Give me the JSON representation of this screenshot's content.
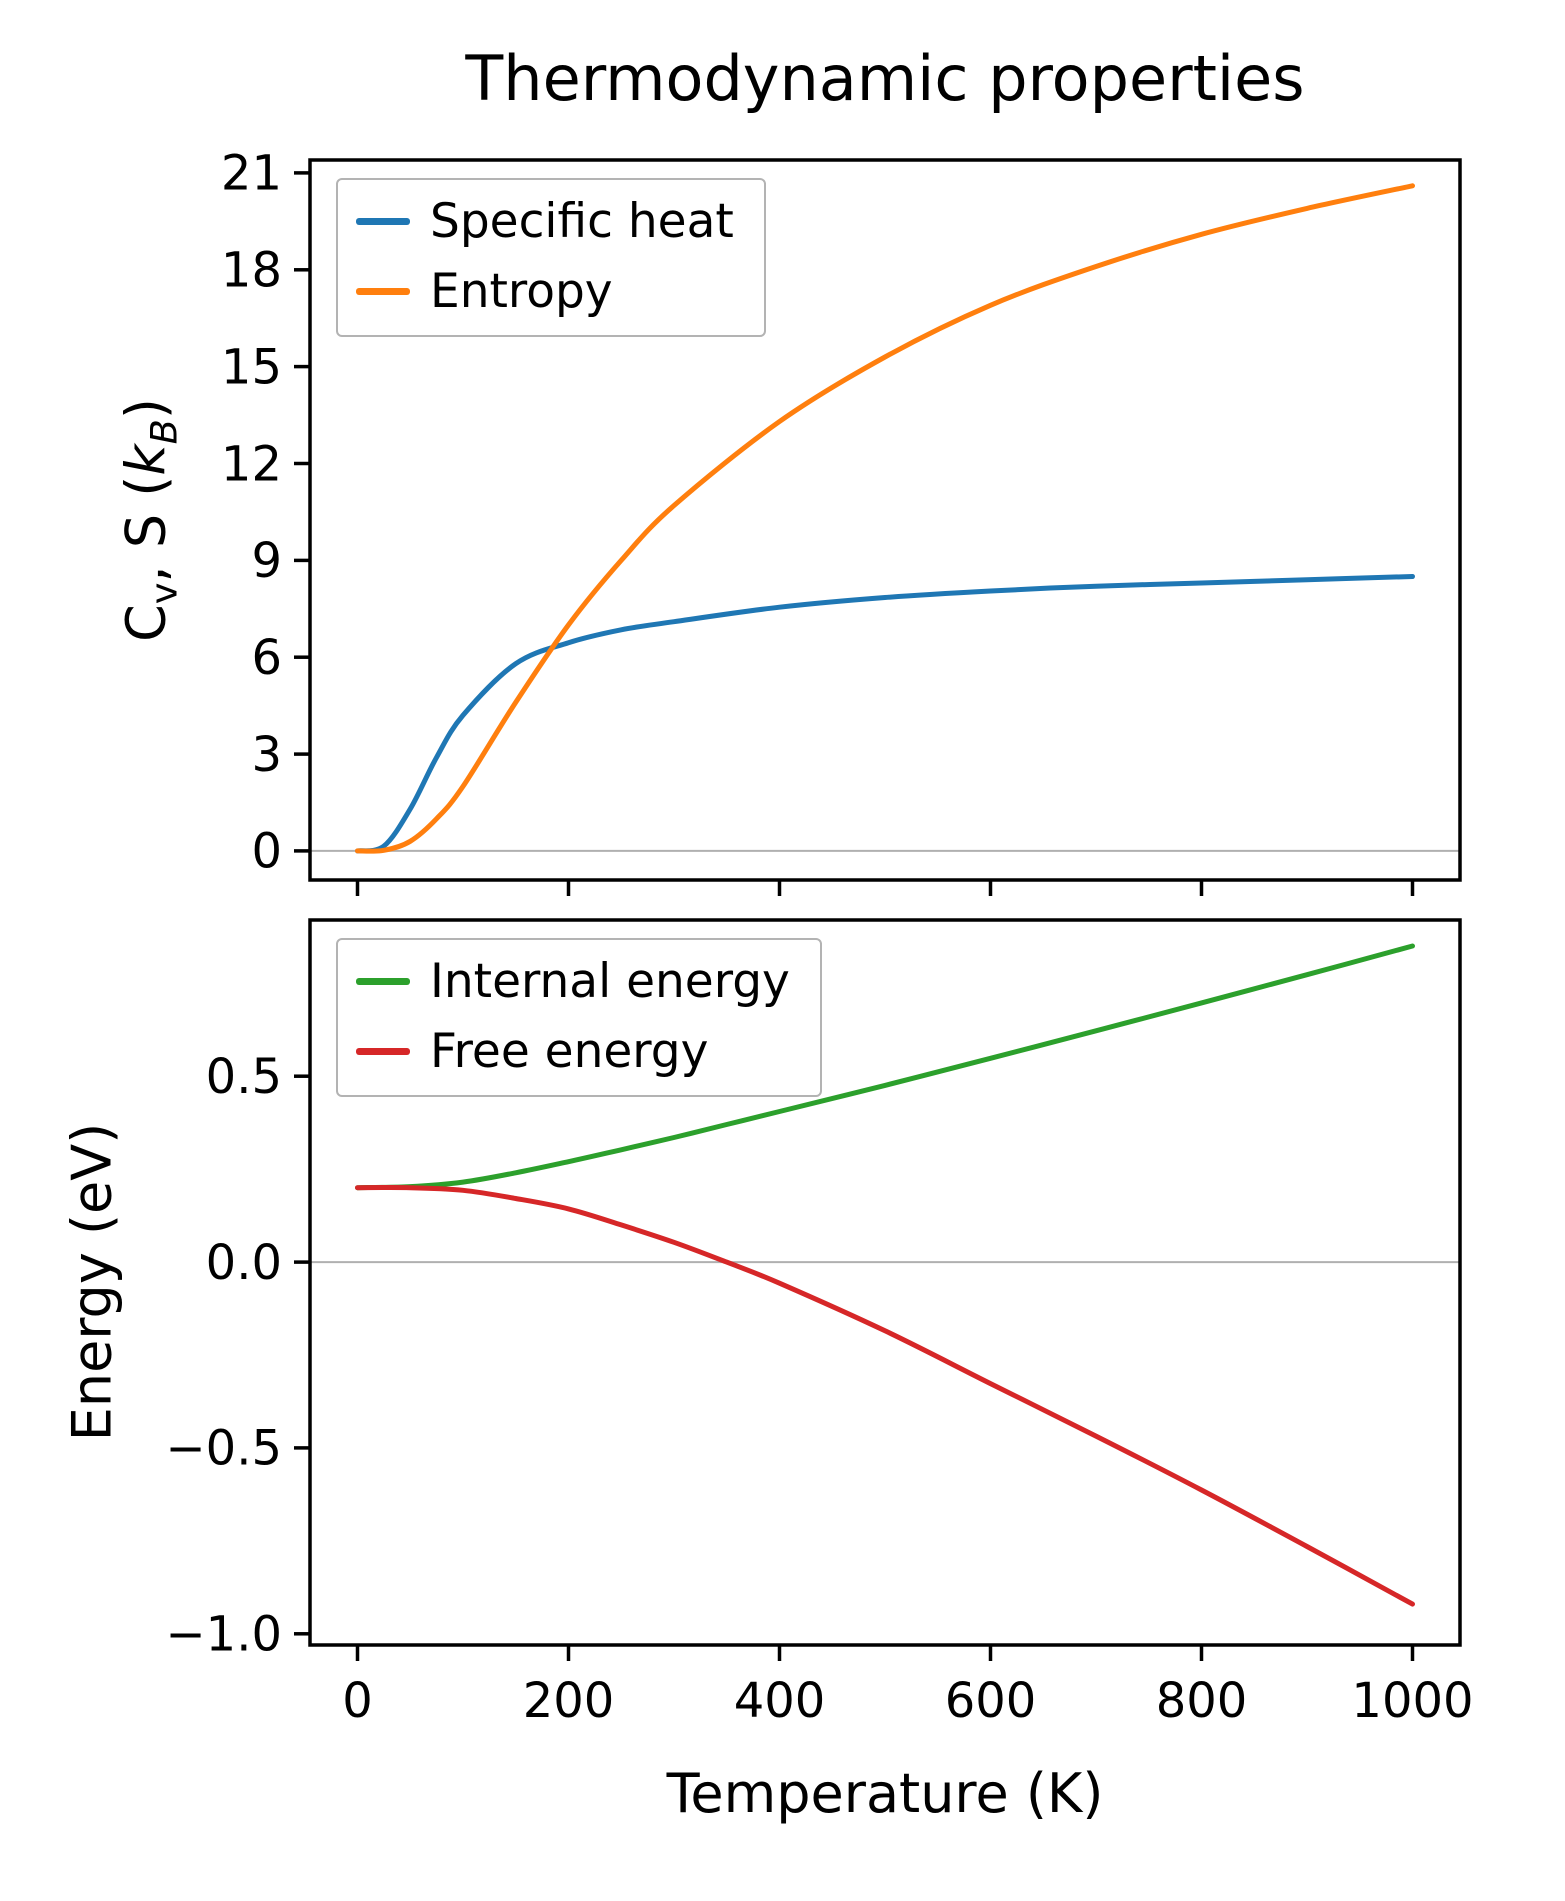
{
  "title": "Thermodynamic properties",
  "colors": {
    "specific_heat": "#1f77b4",
    "entropy": "#ff7f0e",
    "internal_energy": "#2ca02c",
    "free_energy": "#d62728",
    "zero_line": "#b0b0b0",
    "axes": "#000000"
  },
  "chart_data": [
    {
      "type": "line",
      "ylabel_parts": [
        "C",
        "v",
        ", S (",
        "k",
        "B",
        ")"
      ],
      "ylabel_plain": "Cv, S (kB)",
      "xlim": [
        -45,
        1045
      ],
      "ylim": [
        -0.9,
        21.4
      ],
      "grid": false,
      "legend_position": "upper left",
      "show_xtick_labels": false,
      "zero_line": 0,
      "yticks": [
        {
          "v": 0,
          "label": "0"
        },
        {
          "v": 3,
          "label": "3"
        },
        {
          "v": 6,
          "label": "6"
        },
        {
          "v": 9,
          "label": "9"
        },
        {
          "v": 12,
          "label": "12"
        },
        {
          "v": 15,
          "label": "15"
        },
        {
          "v": 18,
          "label": "18"
        },
        {
          "v": 21,
          "label": "21"
        }
      ],
      "xticks": [
        {
          "v": 0,
          "label": "0"
        },
        {
          "v": 200,
          "label": "200"
        },
        {
          "v": 400,
          "label": "400"
        },
        {
          "v": 600,
          "label": "600"
        },
        {
          "v": 800,
          "label": "800"
        },
        {
          "v": 1000,
          "label": "1000"
        }
      ],
      "series": [
        {
          "name": "Specific heat",
          "color": "#1f77b4",
          "x": [
            0,
            25,
            50,
            75,
            100,
            150,
            200,
            250,
            300,
            400,
            500,
            600,
            700,
            800,
            900,
            1000
          ],
          "y": [
            0,
            0.15,
            1.3,
            2.9,
            4.2,
            5.8,
            6.45,
            6.85,
            7.1,
            7.55,
            7.85,
            8.05,
            8.2,
            8.3,
            8.4,
            8.5
          ]
        },
        {
          "name": "Entropy",
          "color": "#ff7f0e",
          "x": [
            0,
            25,
            50,
            75,
            100,
            150,
            200,
            250,
            300,
            400,
            500,
            600,
            700,
            800,
            900,
            1000
          ],
          "y": [
            0,
            0.02,
            0.3,
            1.0,
            2.0,
            4.6,
            7.0,
            9.0,
            10.7,
            13.3,
            15.3,
            16.9,
            18.1,
            19.1,
            19.9,
            20.6
          ]
        }
      ]
    },
    {
      "type": "line",
      "xlabel": "Temperature (K)",
      "ylabel": "Energy (eV)",
      "xlim": [
        -45,
        1045
      ],
      "ylim": [
        -1.03,
        0.92
      ],
      "grid": false,
      "legend_position": "upper left",
      "show_xtick_labels": true,
      "zero_line": 0,
      "yticks": [
        {
          "v": -1.0,
          "label": "−1.0"
        },
        {
          "v": -0.5,
          "label": "−0.5"
        },
        {
          "v": 0.0,
          "label": "0.0"
        },
        {
          "v": 0.5,
          "label": "0.5"
        }
      ],
      "xticks": [
        {
          "v": 0,
          "label": "0"
        },
        {
          "v": 200,
          "label": "200"
        },
        {
          "v": 400,
          "label": "400"
        },
        {
          "v": 600,
          "label": "600"
        },
        {
          "v": 800,
          "label": "800"
        },
        {
          "v": 1000,
          "label": "1000"
        }
      ],
      "series": [
        {
          "name": "Internal energy",
          "color": "#2ca02c",
          "x": [
            0,
            50,
            100,
            150,
            200,
            250,
            300,
            350,
            400,
            500,
            600,
            700,
            800,
            900,
            1000
          ],
          "y": [
            0.2,
            0.203,
            0.215,
            0.24,
            0.27,
            0.302,
            0.335,
            0.37,
            0.405,
            0.475,
            0.548,
            0.622,
            0.697,
            0.773,
            0.85
          ]
        },
        {
          "name": "Free energy",
          "color": "#d62728",
          "x": [
            0,
            50,
            100,
            150,
            200,
            250,
            300,
            350,
            400,
            500,
            600,
            700,
            800,
            900,
            1000
          ],
          "y": [
            0.2,
            0.2,
            0.193,
            0.171,
            0.143,
            0.1,
            0.053,
            0.0,
            -0.057,
            -0.185,
            -0.327,
            -0.468,
            -0.613,
            -0.765,
            -0.92
          ]
        }
      ]
    }
  ]
}
